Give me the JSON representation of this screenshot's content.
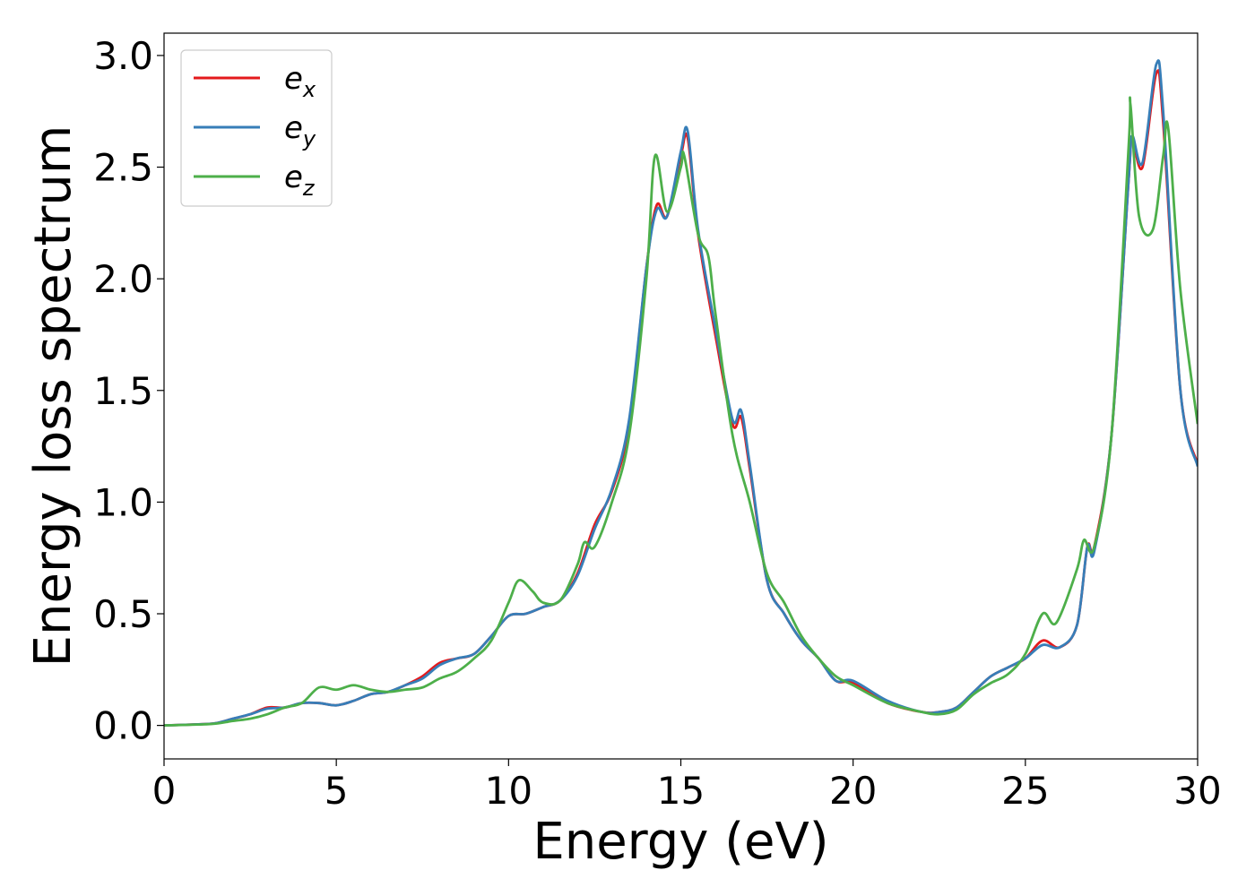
{
  "chart_data": {
    "type": "line",
    "xlabel": "Energy (eV)",
    "ylabel": "Energy loss spectrum",
    "xlim": [
      0,
      30
    ],
    "ylim": [
      -0.15,
      3.1
    ],
    "x_ticks": [
      0,
      5,
      10,
      15,
      20,
      25,
      30
    ],
    "x_tick_labels": [
      "0",
      "5",
      "10",
      "15",
      "20",
      "25",
      "30"
    ],
    "y_ticks": [
      0.0,
      0.5,
      1.0,
      1.5,
      2.0,
      2.5,
      3.0
    ],
    "y_tick_labels": [
      "0.0",
      "0.5",
      "1.0",
      "1.5",
      "2.0",
      "2.5",
      "3.0"
    ],
    "grid": false,
    "legend_position": "top-left",
    "series": [
      {
        "name_base": "e",
        "name_sub": "x",
        "color": "#e41a1c",
        "x": [
          0,
          1,
          1.5,
          2,
          2.5,
          3,
          3.5,
          4,
          4.5,
          5,
          5.5,
          6,
          6.5,
          7,
          7.5,
          8,
          8.5,
          9,
          9.5,
          10,
          10.5,
          11,
          11.5,
          12,
          12.5,
          13,
          13.5,
          14,
          14.3,
          14.6,
          15,
          15.2,
          15.5,
          16,
          16.5,
          16.75,
          17,
          17.5,
          18,
          18.5,
          19,
          19.5,
          20,
          21,
          22,
          22.5,
          23,
          23.5,
          24,
          24.5,
          25,
          25.5,
          26,
          26.5,
          26.8,
          27,
          27.5,
          28,
          28.1,
          28.4,
          28.8,
          29,
          29.5,
          30
        ],
        "y": [
          0,
          0.005,
          0.01,
          0.03,
          0.05,
          0.08,
          0.08,
          0.1,
          0.1,
          0.09,
          0.11,
          0.14,
          0.15,
          0.18,
          0.22,
          0.28,
          0.3,
          0.32,
          0.4,
          0.49,
          0.5,
          0.53,
          0.56,
          0.68,
          0.9,
          1.05,
          1.35,
          2.05,
          2.33,
          2.28,
          2.55,
          2.63,
          2.2,
          1.75,
          1.35,
          1.38,
          1.15,
          0.65,
          0.5,
          0.38,
          0.3,
          0.2,
          0.19,
          0.1,
          0.06,
          0.06,
          0.08,
          0.15,
          0.22,
          0.26,
          0.3,
          0.38,
          0.35,
          0.45,
          0.8,
          0.8,
          1.3,
          2.45,
          2.62,
          2.5,
          2.92,
          2.7,
          1.5,
          1.17
        ]
      },
      {
        "name_base": "e",
        "name_sub": "y",
        "color": "#377eb8",
        "x": [
          0,
          1,
          1.5,
          2,
          2.5,
          3,
          3.5,
          4,
          4.5,
          5,
          5.5,
          6,
          6.5,
          7,
          7.5,
          8,
          8.5,
          9,
          9.5,
          10,
          10.5,
          11,
          11.5,
          12,
          12.5,
          13,
          13.5,
          14,
          14.3,
          14.6,
          15,
          15.2,
          15.5,
          16,
          16.5,
          16.75,
          17,
          17.5,
          18,
          18.5,
          19,
          19.5,
          20,
          21,
          22,
          22.5,
          23,
          23.5,
          24,
          24.5,
          25,
          25.5,
          26,
          26.5,
          26.8,
          27,
          27.5,
          28,
          28.1,
          28.4,
          28.8,
          29,
          29.5,
          30
        ],
        "y": [
          0,
          0.005,
          0.01,
          0.03,
          0.05,
          0.075,
          0.08,
          0.1,
          0.1,
          0.09,
          0.11,
          0.14,
          0.15,
          0.18,
          0.21,
          0.27,
          0.3,
          0.32,
          0.4,
          0.49,
          0.5,
          0.53,
          0.56,
          0.67,
          0.88,
          1.06,
          1.37,
          2.05,
          2.31,
          2.28,
          2.57,
          2.66,
          2.22,
          1.78,
          1.37,
          1.41,
          1.17,
          0.65,
          0.5,
          0.38,
          0.3,
          0.2,
          0.2,
          0.11,
          0.06,
          0.06,
          0.08,
          0.15,
          0.22,
          0.26,
          0.3,
          0.36,
          0.35,
          0.45,
          0.8,
          0.78,
          1.3,
          2.45,
          2.64,
          2.52,
          2.96,
          2.75,
          1.5,
          1.16
        ]
      },
      {
        "name_base": "e",
        "name_sub": "z",
        "color": "#4daf4a",
        "x": [
          0,
          1,
          1.5,
          2,
          2.5,
          3,
          3.5,
          4,
          4.5,
          5,
          5.5,
          6,
          6.5,
          7,
          7.5,
          8,
          8.5,
          9,
          9.5,
          10,
          10.3,
          10.7,
          11,
          11.5,
          12,
          12.2,
          12.5,
          13,
          13.5,
          14,
          14.25,
          14.6,
          15,
          15.1,
          15.5,
          15.8,
          16,
          16.5,
          17,
          17.5,
          18,
          18.5,
          19,
          19.5,
          20,
          21,
          22,
          22.5,
          23,
          23.5,
          24,
          24.5,
          25,
          25.5,
          25.9,
          26.5,
          26.7,
          27,
          27.5,
          28,
          28.05,
          28.3,
          28.7,
          29,
          29.15,
          29.5,
          30
        ],
        "y": [
          0,
          0.004,
          0.008,
          0.02,
          0.03,
          0.05,
          0.08,
          0.1,
          0.17,
          0.16,
          0.18,
          0.16,
          0.15,
          0.16,
          0.17,
          0.21,
          0.24,
          0.3,
          0.38,
          0.55,
          0.65,
          0.6,
          0.55,
          0.56,
          0.72,
          0.82,
          0.8,
          1.0,
          1.3,
          2.0,
          2.55,
          2.3,
          2.5,
          2.55,
          2.2,
          2.1,
          1.85,
          1.3,
          1.0,
          0.68,
          0.55,
          0.4,
          0.3,
          0.22,
          0.18,
          0.1,
          0.06,
          0.05,
          0.07,
          0.14,
          0.19,
          0.23,
          0.32,
          0.5,
          0.46,
          0.7,
          0.83,
          0.8,
          1.3,
          2.6,
          2.78,
          2.28,
          2.22,
          2.55,
          2.67,
          1.95,
          1.35
        ]
      }
    ]
  }
}
